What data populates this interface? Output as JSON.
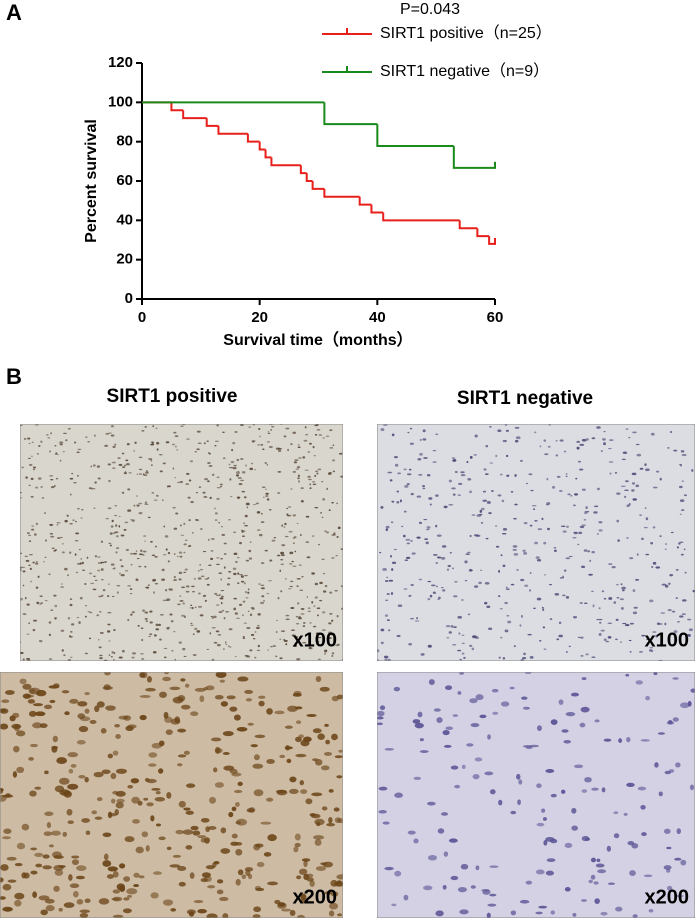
{
  "panel_labels": [
    "A",
    "B"
  ],
  "chart_data": {
    "type": "step",
    "annotation": "P=0.043",
    "xlabel": "Survival time（months）",
    "ylabel": "Percent survival",
    "xlim": [
      0,
      60
    ],
    "ylim": [
      0,
      120
    ],
    "xticks": [
      0,
      20,
      40,
      60
    ],
    "yticks": [
      0,
      20,
      40,
      60,
      80,
      100,
      120
    ],
    "series": [
      {
        "name": "SIRT1 positive（n=25）",
        "color": "#e8201c",
        "x": [
          0,
          5,
          7,
          11,
          13,
          18,
          20,
          21,
          22,
          27,
          28,
          29,
          31,
          37,
          39,
          41,
          54,
          57,
          59,
          60
        ],
        "values": [
          100,
          96,
          92,
          88,
          84,
          80,
          76,
          72,
          68,
          64,
          60,
          56,
          52,
          48,
          44,
          40,
          36,
          32,
          28,
          28
        ]
      },
      {
        "name": "SIRT1 negative（n=9）",
        "color": "#1a8a1a",
        "x": [
          0,
          31,
          40,
          53,
          60
        ],
        "values": [
          100,
          88.9,
          77.8,
          66.7,
          66.7
        ]
      }
    ]
  },
  "images": [
    {
      "title": "SIRT1 positive",
      "panels": [
        "x100",
        "x200"
      ]
    },
    {
      "title": "SIRT1 negative",
      "panels": [
        "x100",
        "x200"
      ]
    }
  ]
}
